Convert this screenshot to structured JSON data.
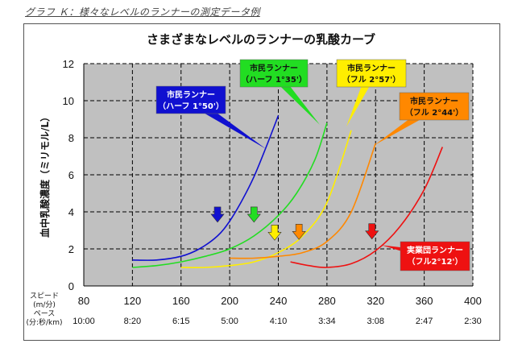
{
  "caption": "グラフ Ｋ：様々なレベルのランナーの測定データ例",
  "chart_data": {
    "type": "line",
    "title": "さまざまなレベルのランナーの乳酸カーブ",
    "ylabel": "血中乳酸濃度（ミリモル/L）",
    "xlabel_speed": "スピード\n(m/分)",
    "xlabel_pace": "ペース\n(分:秒/km)",
    "xlim": [
      80,
      400
    ],
    "ylim": [
      0,
      12
    ],
    "xticks": [
      80,
      120,
      160,
      200,
      240,
      280,
      320,
      360,
      400
    ],
    "yticks": [
      0,
      2,
      4,
      6,
      8,
      10,
      12
    ],
    "pace_labels": [
      "10:00",
      "8:20",
      "6:15",
      "5:00",
      "4:10",
      "3:34",
      "3:08",
      "2:47",
      "2:30"
    ],
    "grid": true,
    "series": [
      {
        "name": "市民ランナー（ハーフ 1°50'）",
        "color": "#1010d0",
        "x": [
          120,
          140,
          160,
          175,
          190,
          200,
          210,
          220,
          230,
          240
        ],
        "y": [
          1.4,
          1.4,
          1.6,
          2.0,
          2.7,
          3.5,
          4.6,
          5.9,
          7.5,
          9.2
        ],
        "threshold_x": 190
      },
      {
        "name": "市民ランナー（ハーフ 1°35'）",
        "color": "#22dd22",
        "x": [
          120,
          140,
          160,
          180,
          200,
          220,
          240,
          255,
          270,
          280
        ],
        "y": [
          1.0,
          1.1,
          1.3,
          1.6,
          2.0,
          2.7,
          3.8,
          5.0,
          6.8,
          8.8
        ],
        "threshold_x": 220
      },
      {
        "name": "市民ランナー（フル 2°57'）",
        "color": "#ffee00",
        "x": [
          160,
          180,
          200,
          220,
          240,
          260,
          280,
          300
        ],
        "y": [
          1.0,
          1.0,
          1.1,
          1.3,
          1.8,
          2.7,
          4.5,
          8.4
        ],
        "threshold_x": 237
      },
      {
        "name": "市民ランナー（フル 2°44'）",
        "color": "#ff8800",
        "x": [
          200,
          220,
          240,
          260,
          280,
          300,
          320
        ],
        "y": [
          1.5,
          1.5,
          1.6,
          1.8,
          2.4,
          4.0,
          7.7
        ],
        "threshold_x": 257
      },
      {
        "name": "実業団ランナー（フル2°12'）",
        "color": "#ee1111",
        "x": [
          250,
          265,
          280,
          300,
          320,
          340,
          360,
          375
        ],
        "y": [
          1.3,
          1.1,
          1.0,
          1.2,
          1.9,
          3.2,
          5.2,
          7.5
        ],
        "threshold_x": 317
      }
    ],
    "callouts": [
      {
        "line1": "市民ランナー",
        "line2": "（ハーフ 1°50'）",
        "bg": "#1010d0",
        "fg": "#ffffff"
      },
      {
        "line1": "市民ランナー",
        "line2": "（ハーフ 1°35'）",
        "bg": "#22dd22",
        "fg": "#111111"
      },
      {
        "line1": "市民ランナー",
        "line2": "（フル 2°57'）",
        "bg": "#ffee00",
        "fg": "#111111"
      },
      {
        "line1": "市民ランナー",
        "line2": "（フル 2°44'）",
        "bg": "#ff8800",
        "fg": "#111111"
      },
      {
        "line1": "実業団ランナー",
        "line2": "（フル2°12'）",
        "bg": "#ee1111",
        "fg": "#ffffff"
      }
    ]
  }
}
